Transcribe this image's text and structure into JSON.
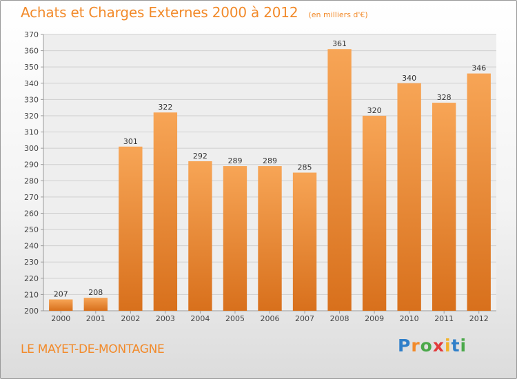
{
  "header": {
    "title": "Achats et Charges Externes 2000 à 2012",
    "unit": "(en milliers d'€)"
  },
  "footer": {
    "commune": "LE MAYET-DE-MONTAGNE",
    "brand": "Proxiti",
    "brand_letters": [
      {
        "char": "P",
        "color": "#2f7fc9"
      },
      {
        "char": "r",
        "color": "#f28a2a"
      },
      {
        "char": "o",
        "color": "#4aa84a"
      },
      {
        "char": "x",
        "color": "#e23b3b"
      },
      {
        "char": "i",
        "color": "#f2b32a"
      },
      {
        "char": "t",
        "color": "#2f7fc9"
      },
      {
        "char": "i",
        "color": "#4aa84a"
      }
    ]
  },
  "chart_data": {
    "type": "bar",
    "title": "Achats et Charges Externes 2000 à 2012",
    "subtitle": "(en milliers d'€)",
    "categories": [
      "2000",
      "2001",
      "2002",
      "2003",
      "2004",
      "2005",
      "2006",
      "2007",
      "2008",
      "2009",
      "2010",
      "2011",
      "2012"
    ],
    "values": [
      207,
      208,
      301,
      322,
      292,
      289,
      289,
      285,
      361,
      320,
      340,
      328,
      346
    ],
    "ylim": [
      200,
      370
    ],
    "ytick_step": 10,
    "grid": true,
    "bar_color": "#f2913a"
  }
}
